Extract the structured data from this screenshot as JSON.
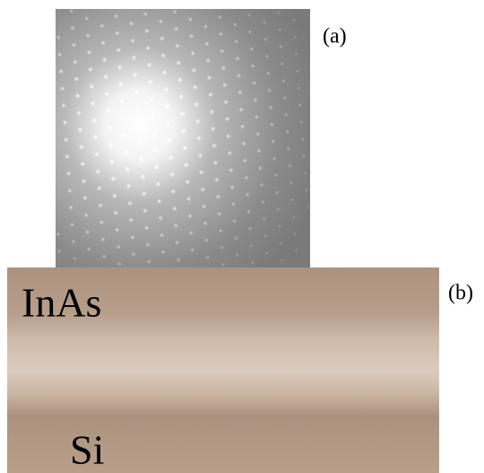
{
  "panels": [
    {
      "label": "(a)"
    },
    {
      "label": "(b)",
      "annotations": [
        "InAs",
        "Si"
      ]
    }
  ]
}
